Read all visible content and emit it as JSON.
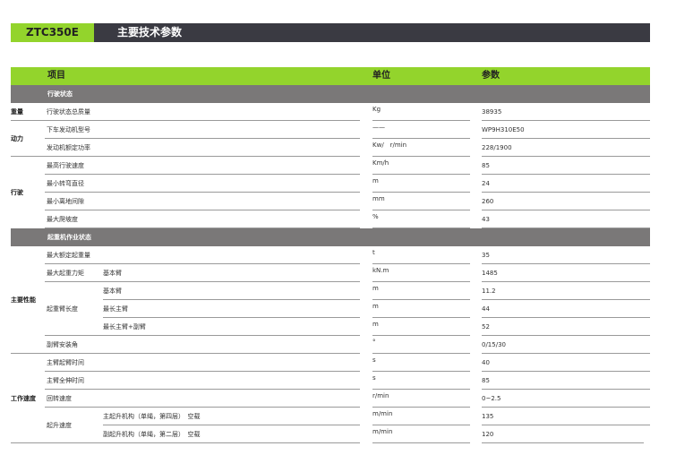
{
  "header": {
    "model": "ZTC350E",
    "title": "主要技术参数"
  },
  "table_header": {
    "item": "项目",
    "unit": "单位",
    "value": "参数"
  },
  "sections": [
    {
      "title": "行驶状态",
      "groups": [
        {
          "label": "重量",
          "rows": [
            {
              "item": "行驶状态总质量",
              "unit": "Kg",
              "value": "38935"
            }
          ]
        },
        {
          "label": "动力",
          "rows": [
            {
              "item": "下车发动机型号",
              "unit": "——",
              "value": "WP9H310E50"
            },
            {
              "item": "发动机额定功率",
              "unit": "Kw/　r/min",
              "value": "228/1900"
            }
          ]
        },
        {
          "label": "行驶",
          "rows": [
            {
              "item": "最高行驶速度",
              "unit": "Km/h",
              "value": "85"
            },
            {
              "item": "最小转弯直径",
              "unit": "m",
              "value": "24"
            },
            {
              "item": "最小离地间隙",
              "unit": "mm",
              "value": "260"
            },
            {
              "item": "最大爬坡度",
              "unit": "%",
              "value": "43"
            }
          ]
        }
      ]
    },
    {
      "title": "起重机作业状态",
      "groups": [
        {
          "label": "主要性能",
          "rows": [
            {
              "item": "最大额定起重量",
              "unit": "t",
              "value": "35"
            },
            {
              "item": "最大起重力矩",
              "subs": [
                {
                  "label": "基本臂",
                  "unit": "kN.m",
                  "value": "1485"
                }
              ]
            },
            {
              "item": "起重臂长度",
              "subs": [
                {
                  "label": "基本臂",
                  "unit": "m",
                  "value": "11.2"
                },
                {
                  "label": "最长主臂",
                  "unit": "m",
                  "value": "44"
                },
                {
                  "label": "最长主臂+副臂",
                  "unit": "m",
                  "value": "52"
                }
              ]
            },
            {
              "item": "副臂安装角",
              "unit": "°",
              "value": "0/15/30"
            }
          ]
        },
        {
          "label": "工作速度",
          "rows": [
            {
              "item": "主臂起臂时间",
              "unit": "s",
              "value": "40"
            },
            {
              "item": "主臂全伸时间",
              "unit": "s",
              "value": "85"
            },
            {
              "item": "回转速度",
              "unit": "r/min",
              "value": "0~2.5"
            },
            {
              "item": "起升速度",
              "subs": [
                {
                  "label": "主起升机构（单绳，第四层）　空载",
                  "unit": "m/min",
                  "value": "135"
                },
                {
                  "label": "副起升机构（单绳，第二层）　空载",
                  "unit": "m/min",
                  "value": "120"
                }
              ]
            }
          ]
        }
      ]
    }
  ]
}
